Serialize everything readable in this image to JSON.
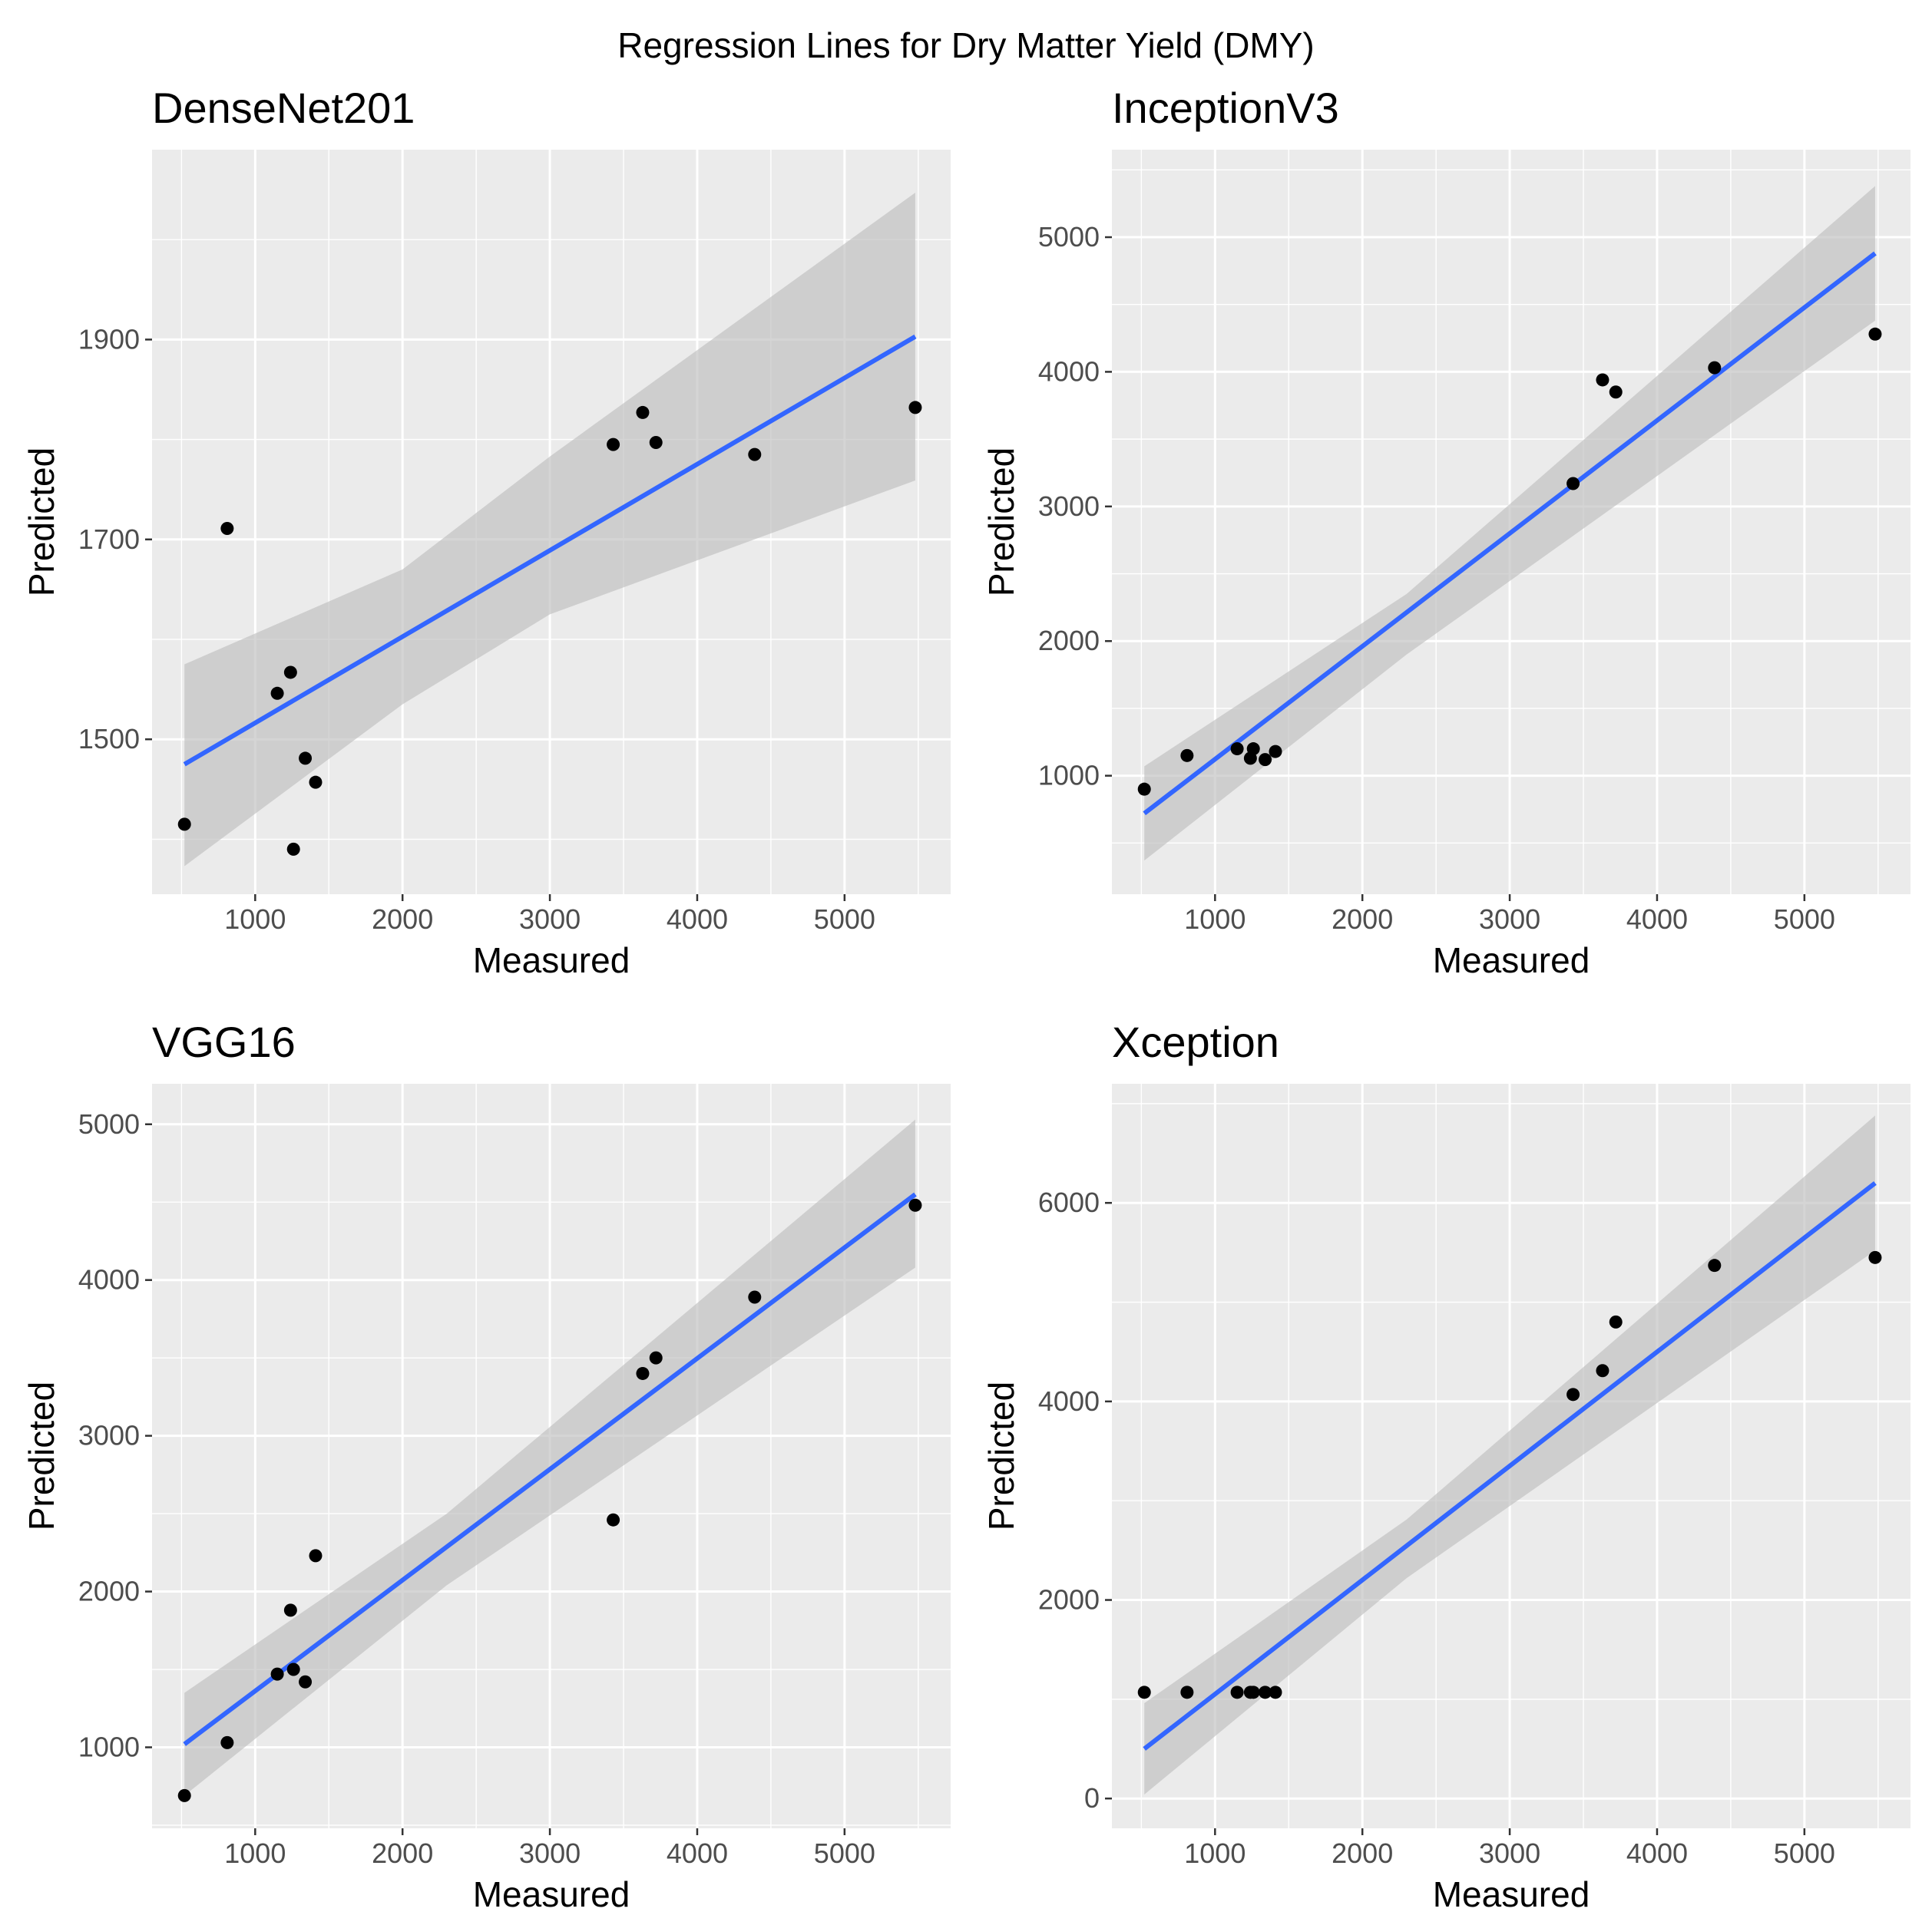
{
  "title": "Regression Lines for Dry Matter Yield (DMY)",
  "colors": {
    "panel_background": "#ebebeb",
    "grid": "#ffffff",
    "regression_line": "#3366ff",
    "confidence_band": "#bfbfbf",
    "points": "#000000",
    "tick_text": "#4d4d4d"
  },
  "chart_data": [
    {
      "type": "scatter",
      "title": "DenseNet201",
      "xlabel": "Measured",
      "ylabel": "Predicted",
      "xlim": [
        300,
        5720
      ],
      "ylim": [
        1345,
        2090
      ],
      "xticks": [
        1000,
        2000,
        3000,
        4000,
        5000
      ],
      "xtick_labels": [
        "1000",
        "2000",
        "3000",
        "4000",
        "5000"
      ],
      "yticks": [
        1500,
        1700,
        1900
      ],
      "ytick_labels": [
        "1500",
        "1700",
        "1900"
      ],
      "x": [
        520,
        810,
        1150,
        1240,
        1260,
        1340,
        1410,
        3430,
        3630,
        3720,
        4390,
        5480
      ],
      "y": [
        1415,
        1711,
        1546,
        1567,
        1390,
        1481,
        1457,
        1795,
        1827,
        1797,
        1785,
        1832
      ],
      "fit": {
        "x": [
          520,
          5480
        ],
        "y": [
          1475,
          1903
        ]
      },
      "band": {
        "x": [
          520,
          2000,
          3000,
          5480
        ],
        "upper": [
          1575,
          1670,
          1783,
          2047
        ],
        "lower": [
          1373,
          1535,
          1625,
          1759
        ]
      }
    },
    {
      "type": "scatter",
      "title": "InceptionV3",
      "xlabel": "Measured",
      "ylabel": "Predicted",
      "xlim": [
        300,
        5720
      ],
      "ylim": [
        120,
        5650
      ],
      "xticks": [
        1000,
        2000,
        3000,
        4000,
        5000
      ],
      "xtick_labels": [
        "1000",
        "2000",
        "3000",
        "4000",
        "5000"
      ],
      "yticks": [
        1000,
        2000,
        3000,
        4000,
        5000
      ],
      "ytick_labels": [
        "1000",
        "2000",
        "3000",
        "4000",
        "5000"
      ],
      "x": [
        520,
        810,
        1150,
        1240,
        1260,
        1340,
        1410,
        3430,
        3630,
        3720,
        4390,
        5480
      ],
      "y": [
        900,
        1150,
        1200,
        1130,
        1200,
        1120,
        1180,
        3170,
        3940,
        3850,
        4030,
        4280
      ],
      "fit": {
        "x": [
          520,
          5480
        ],
        "y": [
          720,
          4880
        ]
      },
      "band": {
        "x": [
          520,
          2300,
          5480
        ],
        "upper": [
          1070,
          2350,
          5380
        ],
        "lower": [
          370,
          1900,
          4380
        ]
      }
    },
    {
      "type": "scatter",
      "title": "VGG16",
      "xlabel": "Measured",
      "ylabel": "Predicted",
      "xlim": [
        300,
        5720
      ],
      "ylim": [
        480,
        5260
      ],
      "xticks": [
        1000,
        2000,
        3000,
        4000,
        5000
      ],
      "xtick_labels": [
        "1000",
        "2000",
        "3000",
        "4000",
        "5000"
      ],
      "yticks": [
        1000,
        2000,
        3000,
        4000,
        5000
      ],
      "ytick_labels": [
        "1000",
        "2000",
        "3000",
        "4000",
        "5000"
      ],
      "x": [
        520,
        810,
        1150,
        1240,
        1260,
        1340,
        1410,
        3430,
        3630,
        3720,
        4390,
        5480
      ],
      "y": [
        690,
        1030,
        1470,
        1880,
        1500,
        1420,
        2230,
        2460,
        3400,
        3500,
        3890,
        4480
      ],
      "fit": {
        "x": [
          520,
          5480
        ],
        "y": [
          1020,
          4550
        ]
      },
      "band": {
        "x": [
          520,
          2300,
          5480
        ],
        "upper": [
          1350,
          2500,
          5030
        ],
        "lower": [
          690,
          2040,
          4080
        ]
      }
    },
    {
      "type": "scatter",
      "title": "Xception",
      "xlabel": "Measured",
      "ylabel": "Predicted",
      "xlim": [
        300,
        5720
      ],
      "ylim": [
        -300,
        7200
      ],
      "xticks": [
        1000,
        2000,
        3000,
        4000,
        5000
      ],
      "xtick_labels": [
        "1000",
        "2000",
        "3000",
        "4000",
        "5000"
      ],
      "yticks": [
        0,
        2000,
        4000,
        6000
      ],
      "ytick_labels": [
        "0",
        "2000",
        "4000",
        "6000"
      ],
      "x": [
        520,
        810,
        1150,
        1240,
        1260,
        1340,
        1410,
        3430,
        3630,
        3720,
        4390,
        5480
      ],
      "y": [
        1070,
        1070,
        1070,
        1070,
        1070,
        1070,
        1070,
        4070,
        4310,
        4800,
        5370,
        5450
      ],
      "fit": {
        "x": [
          520,
          5480
        ],
        "y": [
          500,
          6200
        ]
      },
      "band": {
        "x": [
          520,
          2300,
          5480
        ],
        "upper": [
          960,
          2810,
          6880
        ],
        "lower": [
          40,
          2220,
          5520
        ]
      }
    }
  ]
}
